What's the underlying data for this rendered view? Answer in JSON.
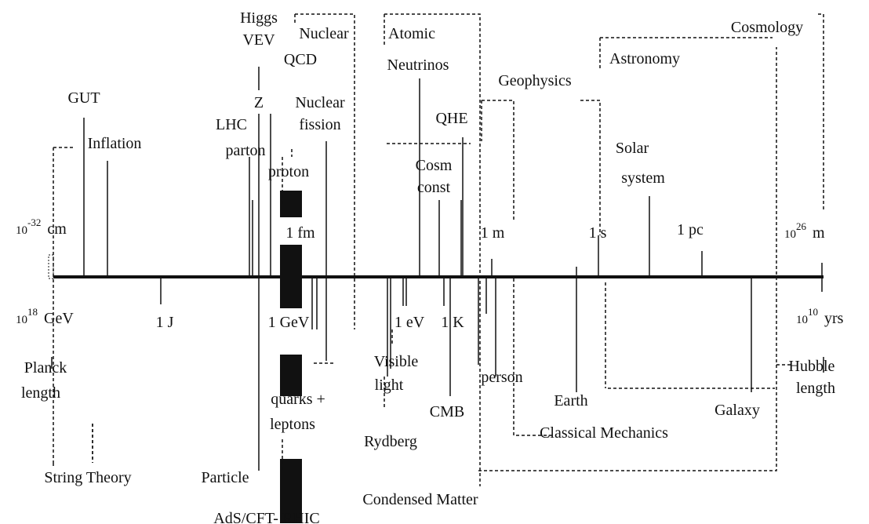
{
  "labels": [
    "Higgs",
    "VEV",
    "Nuclear",
    "Atomic",
    "Cosmology",
    "QCD",
    "Neutrinos",
    "Astronomy",
    "Geophysics",
    "GUT",
    "Z",
    "Nuclear",
    "fission",
    "LHC",
    "QHE",
    "Inflation",
    "parton",
    "Cosm",
    "const",
    "proton",
    "Solar",
    "system",
    "1 fm",
    "1 m",
    "1 s",
    "1 pc",
    "1 J",
    "1 GeV",
    "1 eV",
    "1 K",
    "Visible",
    "light",
    "Planck",
    "length",
    "person",
    "Hubble",
    "length",
    "quarks +",
    "leptons",
    "Earth",
    "CMB",
    "Galaxy",
    "Classical Mechanics",
    "Rydberg",
    "String Theory",
    "Particle",
    "Condensed Matter",
    "AdS/CFT- RHIC"
  ],
  "scales": [
    {
      "base": "10",
      "exponent": "-32",
      "unit": "cm"
    },
    {
      "base": "10",
      "exponent": "26",
      "unit": "m"
    },
    {
      "base": "10",
      "exponent": "18",
      "unit": "GeV"
    },
    {
      "base": "10",
      "exponent": "10",
      "unit": "yrs"
    }
  ]
}
